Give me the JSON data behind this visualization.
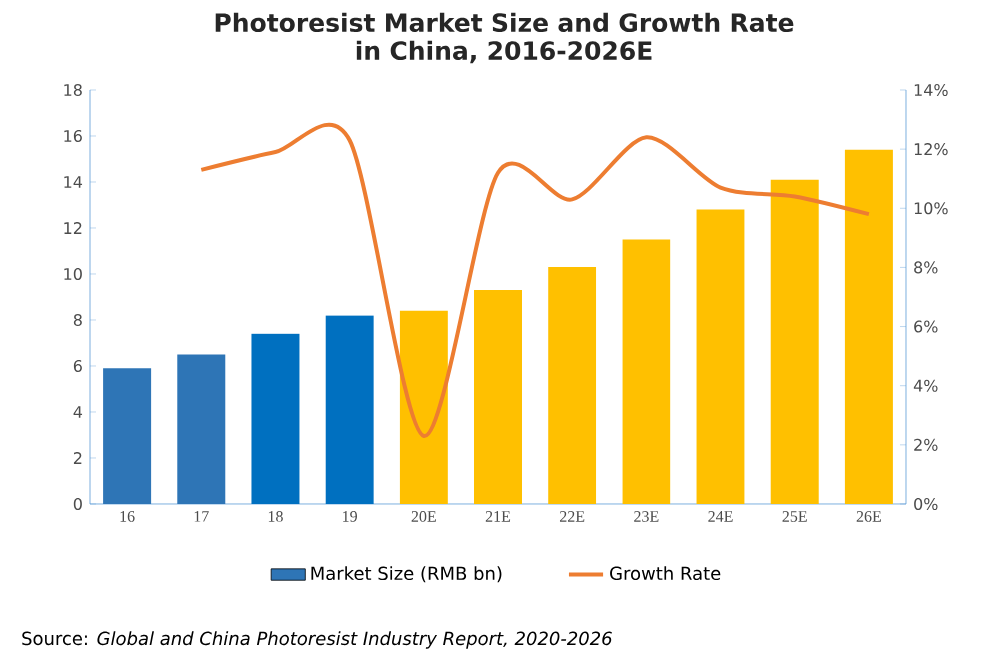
{
  "chart_data": {
    "type": "bar",
    "title": "Photoresist Market Size and Growth Rate\nin China, 2016-2026E",
    "categories": [
      "16",
      "17",
      "18",
      "19",
      "20E",
      "21E",
      "22E",
      "23E",
      "24E",
      "25E",
      "26E"
    ],
    "series": [
      {
        "name": "Market Size (RMB bn)",
        "color": "#2e75b6",
        "colors": [
          "#2e75b6",
          "#2e75b6",
          "#0070c0",
          "#0070c0",
          "#ffc000",
          "#ffc000",
          "#ffc000",
          "#ffc000",
          "#ffc000",
          "#ffc000",
          "#ffc000"
        ],
        "values": [
          5.9,
          6.5,
          7.4,
          8.2,
          8.4,
          9.3,
          10.3,
          11.5,
          12.8,
          14.1,
          15.4
        ]
      },
      {
        "name": "Growth Rate",
        "type": "line",
        "axis": "y2",
        "color": "#ed7d31",
        "values": [
          null,
          11.3,
          11.9,
          12.3,
          2.3,
          11.2,
          10.3,
          12.4,
          10.7,
          10.4,
          9.8
        ]
      }
    ],
    "ylim": [
      0,
      18
    ],
    "yticks": [
      0,
      2,
      4,
      6,
      8,
      10,
      12,
      14,
      16,
      18
    ],
    "y2lim": [
      0,
      14
    ],
    "y2ticks": [
      {
        "value": 0,
        "label": "0%"
      },
      {
        "value": 2,
        "label": "2%"
      },
      {
        "value": 4,
        "label": "4%"
      },
      {
        "value": 6,
        "label": "6%"
      },
      {
        "value": 8,
        "label": "8%"
      },
      {
        "value": 10,
        "label": "10%"
      },
      {
        "value": 12,
        "label": "12%"
      },
      {
        "value": 14,
        "label": "14%"
      }
    ],
    "grid": false,
    "legend": "bottom",
    "marker": "none",
    "annotations": [
      "Source: *Global and China Photoresist Industry Report, 2020-2026*"
    ]
  }
}
